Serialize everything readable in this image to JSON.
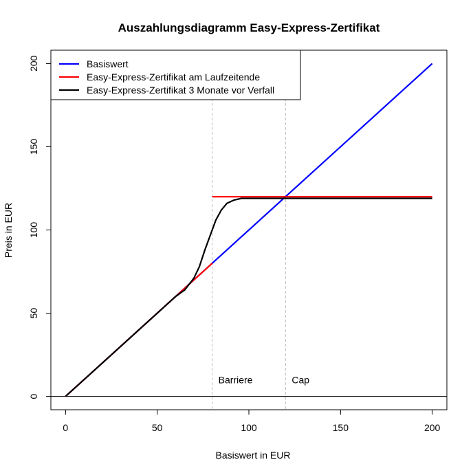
{
  "chart_data": {
    "type": "line",
    "title": "Auszahlungsdiagramm Easy-Express-Zertifikat",
    "xlabel": "Basiswert in EUR",
    "ylabel": "Preis in EUR",
    "xlim": [
      -8,
      208
    ],
    "ylim": [
      -8,
      208
    ],
    "x_ticks": [
      0,
      50,
      100,
      150,
      200
    ],
    "y_ticks": [
      0,
      50,
      100,
      150,
      200
    ],
    "grid": false,
    "legend_position": "top-left",
    "reference_lines": [
      {
        "axis": "x",
        "value": 80,
        "label": "Barriere",
        "style": "dashed",
        "color": "#bebebe"
      },
      {
        "axis": "x",
        "value": 120,
        "label": "Cap",
        "style": "dashed",
        "color": "#bebebe"
      },
      {
        "axis": "y",
        "value": 0,
        "style": "solid",
        "color": "#000000"
      }
    ],
    "series": [
      {
        "name": "Basiswert",
        "color": "#0000ff",
        "points": [
          [
            0,
            0
          ],
          [
            200,
            200
          ]
        ]
      },
      {
        "name": "Easy-Express-Zertifikat am Laufzeitende",
        "color": "#ff0000",
        "segments": [
          [
            [
              0,
              0
            ],
            [
              80,
              80
            ]
          ],
          [
            [
              80,
              120
            ],
            [
              200,
              120
            ]
          ]
        ]
      },
      {
        "name": "Easy-Express-Zertifikat 3 Monate vor Verfall",
        "color": "#000000",
        "points": [
          [
            0,
            0
          ],
          [
            50,
            50
          ],
          [
            60,
            60
          ],
          [
            65,
            64
          ],
          [
            70,
            71
          ],
          [
            73,
            78
          ],
          [
            76,
            88
          ],
          [
            79,
            97
          ],
          [
            82,
            106
          ],
          [
            85,
            112
          ],
          [
            88,
            116
          ],
          [
            92,
            118
          ],
          [
            96,
            119
          ],
          [
            100,
            119
          ],
          [
            120,
            119
          ],
          [
            200,
            119
          ]
        ]
      }
    ]
  }
}
